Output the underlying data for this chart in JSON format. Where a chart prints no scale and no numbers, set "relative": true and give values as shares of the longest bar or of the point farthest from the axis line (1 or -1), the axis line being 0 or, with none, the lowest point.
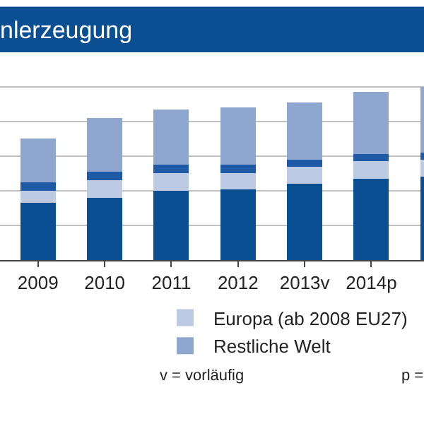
{
  "chart_data": {
    "type": "bar",
    "title": "nlerzeugung",
    "stacked": true,
    "relative": true,
    "grid": "y",
    "legend": "bottom",
    "categories": [
      "2009",
      "2010",
      "2011",
      "2012",
      "2013v",
      "2014p",
      null
    ],
    "series": [
      {
        "color": "#0b4f93",
        "values": [
          0.33,
          0.36,
          0.4,
          0.41,
          0.44,
          0.47,
          0.48
        ]
      },
      {
        "name": "Europa (ab 2008 EU27)",
        "color": "#bccbe3",
        "values": [
          0.07,
          0.1,
          0.1,
          0.09,
          0.1,
          0.1,
          0.1
        ]
      },
      {
        "color": "#1f5aa6",
        "values": [
          0.05,
          0.05,
          0.05,
          0.05,
          0.04,
          0.04,
          0.04
        ]
      },
      {
        "name": "Restliche Welt",
        "color": "#8fa6cf",
        "values": [
          0.25,
          0.31,
          0.32,
          0.33,
          0.33,
          0.36,
          0.38
        ]
      }
    ],
    "annotations": [
      "v = vorläufig",
      "p ="
    ]
  }
}
